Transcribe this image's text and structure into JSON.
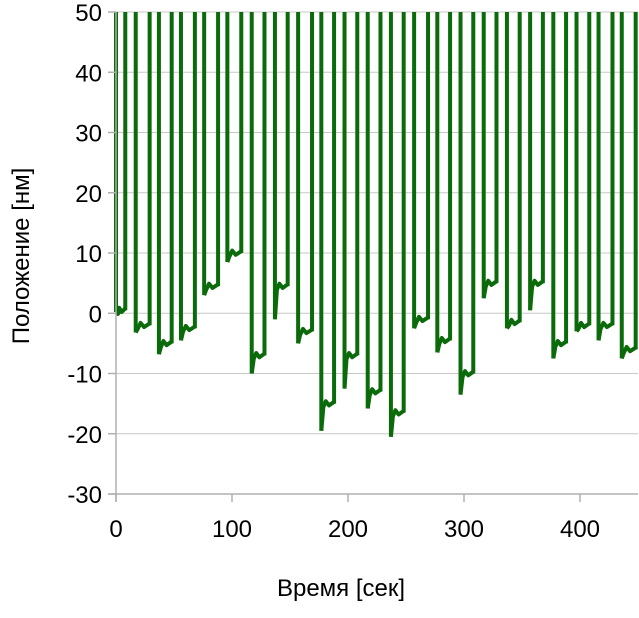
{
  "chart_data": {
    "type": "line",
    "title": "",
    "xlabel": "Время [сек]",
    "ylabel": "Положение [нм]",
    "xlim": [
      0,
      450
    ],
    "ylim": [
      -30,
      50
    ],
    "xticks": [
      0,
      100,
      200,
      300,
      400
    ],
    "xtick_labels": [
      "0",
      "100",
      "200",
      "300",
      "400"
    ],
    "yticks": [
      -30,
      -20,
      -10,
      0,
      10,
      20,
      30,
      40,
      50
    ],
    "ytick_labels": [
      "-30",
      "-20",
      "-10",
      "0",
      "10",
      "20",
      "30",
      "40",
      "50"
    ],
    "grid": "horizontal",
    "legend": "none",
    "colors": {
      "series": "#0b6b0b",
      "grid": "#c8c8c8",
      "axis": "#b0b0b0"
    },
    "series": [
      {
        "values": [
          {
            "start": 0,
            "end": 8,
            "level": 0.5,
            "dip": 0.2
          },
          {
            "start": 17,
            "end": 29,
            "level": -2,
            "dip": -3.2
          },
          {
            "start": 37,
            "end": 48,
            "level": -5,
            "dip": -6.8
          },
          {
            "start": 56,
            "end": 68,
            "level": -2.5,
            "dip": -4.5
          },
          {
            "start": 76,
            "end": 88,
            "level": 4.5,
            "dip": 3.0
          },
          {
            "start": 96,
            "end": 108,
            "level": 10,
            "dip": 8.5
          },
          {
            "start": 117,
            "end": 128,
            "level": -7,
            "dip": -10.0
          },
          {
            "start": 137,
            "end": 148,
            "level": 4.5,
            "dip": -1.0
          },
          {
            "start": 157,
            "end": 169,
            "level": -3,
            "dip": -5.0
          },
          {
            "start": 177,
            "end": 188,
            "level": -15,
            "dip": -19.5
          },
          {
            "start": 197,
            "end": 208,
            "level": -7,
            "dip": -12.5
          },
          {
            "start": 217,
            "end": 228,
            "level": -13,
            "dip": -15.8
          },
          {
            "start": 237,
            "end": 248,
            "level": -16.5,
            "dip": -20.5
          },
          {
            "start": 257,
            "end": 269,
            "level": -1,
            "dip": -2.5
          },
          {
            "start": 277,
            "end": 288,
            "level": -4.5,
            "dip": -6.5
          },
          {
            "start": 297,
            "end": 308,
            "level": -10,
            "dip": -13.5
          },
          {
            "start": 317,
            "end": 328,
            "level": 5,
            "dip": 2.5
          },
          {
            "start": 337,
            "end": 348,
            "level": -1.5,
            "dip": -2.5
          },
          {
            "start": 357,
            "end": 368,
            "level": 5,
            "dip": 0.5
          },
          {
            "start": 377,
            "end": 388,
            "level": -5,
            "dip": -7.5
          },
          {
            "start": 397,
            "end": 408,
            "level": -2,
            "dip": -3.0
          },
          {
            "start": 416,
            "end": 428,
            "level": -2,
            "dip": -4.5
          },
          {
            "start": 436,
            "end": 448,
            "level": -6,
            "dip": -7.5
          }
        ]
      }
    ]
  }
}
